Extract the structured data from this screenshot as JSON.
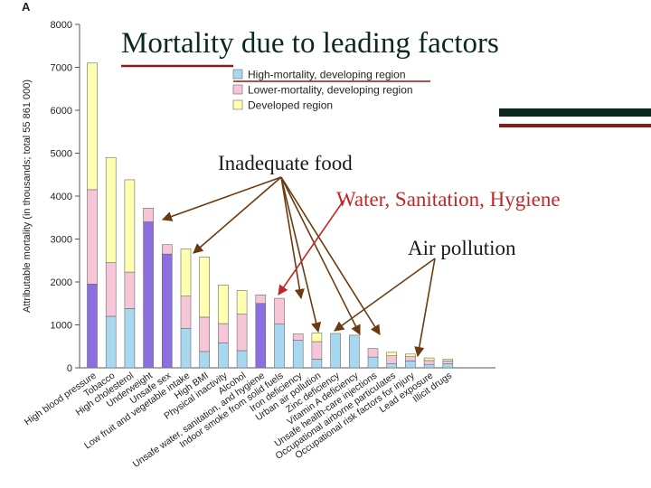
{
  "chart_data": {
    "type": "bar",
    "stacked": true,
    "panel_label": "A",
    "title": "Mortality due to leading factors",
    "xlabel": "",
    "ylabel": "Attributable mortality (in thousands; total 55 861 000)",
    "ylim": [
      0,
      8000
    ],
    "yticks": [
      0,
      1000,
      2000,
      3000,
      4000,
      5000,
      6000,
      7000,
      8000
    ],
    "grid": false,
    "legend_position": "top",
    "categories": [
      "High blood pressure",
      "Tobacco",
      "High cholesterol",
      "Underweight",
      "Unsafe sex",
      "Low fruit and vegetable intake",
      "High BMI",
      "Physical inactivity",
      "Alcohol",
      "Unsafe water, sanitation, and hygiene",
      "Indoor smoke from solid fuels",
      "Iron deficiency",
      "Urban air pollution",
      "Zinc deficiency",
      "Vitamin A deficiency",
      "Unsafe health-care injections",
      "Occupational airborne particulates",
      "Occupational risk factors for injury",
      "Lead exposure",
      "Illicit drugs"
    ],
    "series": [
      {
        "name": "High-mortality, developing region",
        "color": "#a8d8f0",
        "values": [
          null,
          1200,
          1380,
          null,
          null,
          920,
          380,
          580,
          400,
          null,
          1020,
          640,
          200,
          800,
          760,
          250,
          100,
          160,
          80,
          100
        ]
      },
      {
        "name": "Lower-mortality, developing region",
        "color": "#f6c6d8",
        "values": [
          2200,
          1250,
          850,
          320,
          220,
          750,
          800,
          450,
          850,
          200,
          600,
          150,
          410,
          0,
          0,
          200,
          180,
          100,
          90,
          60
        ]
      },
      {
        "name": "Developed region",
        "color": "#ffffb0",
        "values": [
          2950,
          2450,
          2150,
          0,
          0,
          1100,
          1400,
          900,
          550,
          0,
          0,
          0,
          200,
          0,
          0,
          0,
          80,
          60,
          60,
          40
        ]
      }
    ],
    "series_overrides": {
      "High blood pressure": {
        "High-mortality, developing region": 1950
      },
      "Underweight": {
        "High-mortality, developing region": 3400
      },
      "Unsafe sex": {
        "High-mortality, developing region": 2650
      },
      "Unsafe water, sanitation, and hygiene": {
        "High-mortality, developing region": 1500
      }
    },
    "purple_categories": [
      "High blood pressure",
      "Underweight",
      "Unsafe sex",
      "Unsafe water, sanitation, and hygiene"
    ],
    "purple_color": "#8b6fe0",
    "annotations": [
      {
        "text": "Inadequate food",
        "color": "#1a1a1a"
      },
      {
        "text": "Water, Sanitation, Hygiene",
        "color": "#c02828"
      },
      {
        "text": "Air pollution",
        "color": "#1a1a1a"
      }
    ]
  }
}
